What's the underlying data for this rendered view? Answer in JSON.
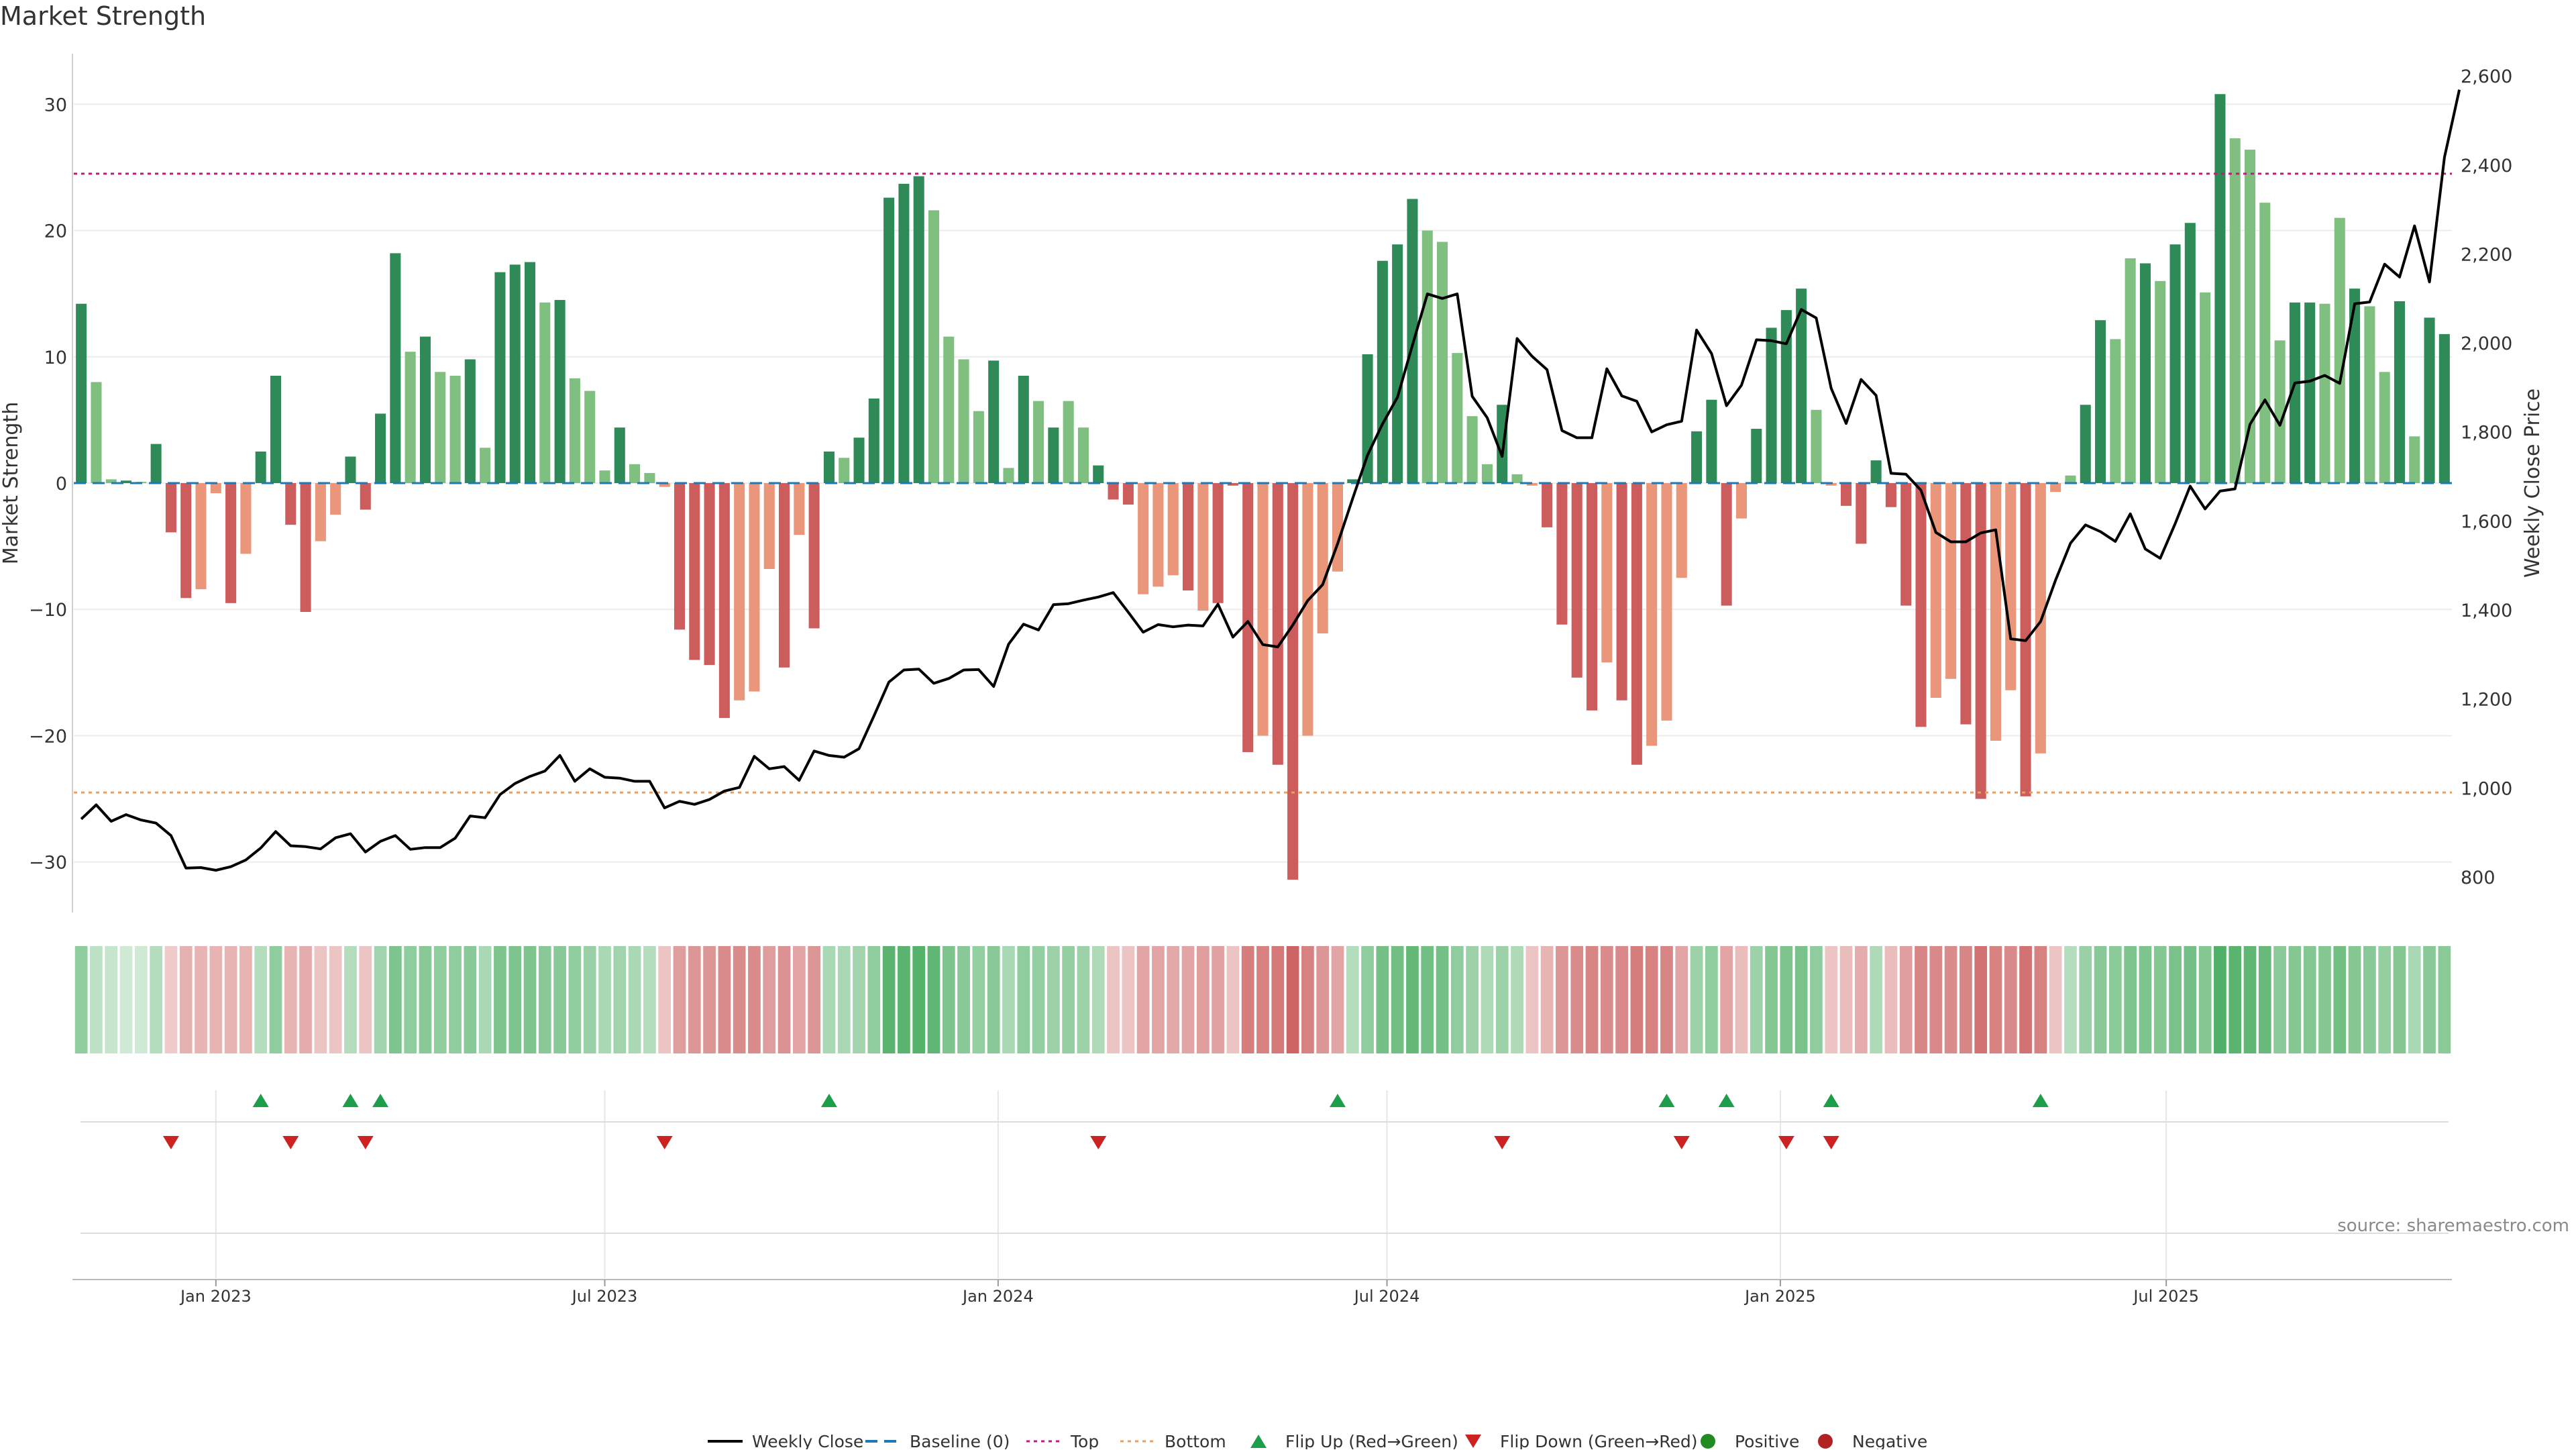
{
  "title": "Market Strength",
  "source": "source: sharemaestro.com",
  "colors": {
    "strong_green": "#2e8b57",
    "light_green": "#7fbf7f",
    "strong_red": "#cd5c5c",
    "light_red": "#e9967a",
    "price_line": "#000000",
    "baseline": "#1f77b4",
    "top": "#c71585",
    "bottom": "#e8a060",
    "flip_up": "#1e9e4a",
    "flip_down": "#cc2222",
    "positive": "#228b22",
    "negative": "#b22222"
  },
  "chart_data": {
    "type": "bar+line",
    "title": "Market Strength",
    "ylabel_left": "Market Strength",
    "ylabel_right": "Weekly Close Price",
    "ylim_left": [
      -34,
      34
    ],
    "ylim_right": [
      720,
      2650
    ],
    "yticks_left": [
      30,
      20,
      10,
      0,
      -10,
      -20,
      -30
    ],
    "ytick_labels_left": [
      "30",
      "20",
      "10",
      "0",
      "−10",
      "−20",
      "−30"
    ],
    "yticks_right": [
      2600,
      2400,
      2200,
      2000,
      1800,
      1600,
      1400,
      1200,
      1000,
      800
    ],
    "ytick_labels_right": [
      "2,600",
      "2,400",
      "2,200",
      "2,000",
      "1,800",
      "1,600",
      "1,400",
      "1,200",
      "1,000",
      "800"
    ],
    "top_line": 24.5,
    "bottom_line": -24.5,
    "baseline": 0,
    "x_start_week": -9,
    "xticks": [
      {
        "week": 0,
        "label": "Jan 2023"
      },
      {
        "week": 26,
        "label": "Jul 2023"
      },
      {
        "week": 52.3,
        "label": "Jan 2024"
      },
      {
        "week": 78.3,
        "label": "Jul 2024"
      },
      {
        "week": 104.6,
        "label": "Jan 2025"
      },
      {
        "week": 130.4,
        "label": "Jul 2025"
      }
    ],
    "strength": [
      14.2,
      8.0,
      0.3,
      0.2,
      0.1,
      3.1,
      -3.9,
      -9.1,
      -8.4,
      -0.8,
      -9.5,
      -5.6,
      2.5,
      8.5,
      -3.3,
      -10.2,
      -4.6,
      -2.5,
      2.1,
      -2.1,
      5.5,
      18.2,
      10.4,
      11.6,
      8.8,
      8.5,
      9.8,
      2.8,
      16.7,
      17.3,
      17.5,
      14.3,
      14.5,
      8.3,
      7.3,
      1.0,
      4.4,
      1.5,
      0.8,
      -0.3,
      -11.6,
      -14.0,
      -14.4,
      -18.6,
      -17.2,
      -16.5,
      -6.8,
      -14.6,
      -4.1,
      -11.5,
      2.5,
      2.0,
      3.6,
      6.7,
      22.6,
      23.7,
      24.3,
      21.6,
      11.6,
      9.8,
      5.7,
      9.7,
      1.2,
      8.5,
      6.5,
      4.4,
      6.5,
      4.4,
      1.4,
      -1.3,
      -1.7,
      -8.8,
      -8.2,
      -7.3,
      -8.5,
      -10.1,
      -9.5,
      -0.2,
      -21.3,
      -20.0,
      -22.3,
      -31.4,
      -20.0,
      -11.9,
      -7.0,
      0.3,
      10.2,
      17.6,
      18.9,
      22.5,
      20.0,
      19.1,
      10.3,
      5.3,
      1.5,
      6.2,
      0.7,
      -0.2,
      -3.5,
      -11.2,
      -15.4,
      -18.0,
      -14.2,
      -17.2,
      -22.3,
      -20.8,
      -18.8,
      -7.5,
      4.1,
      6.6,
      -9.7,
      -2.8,
      4.3,
      12.3,
      13.7,
      15.4,
      5.8,
      -0.2,
      -1.8,
      -4.8,
      1.8,
      -1.9,
      -9.7,
      -19.3,
      -17.0,
      -15.5,
      -19.1,
      -25.0,
      -20.4,
      -16.4,
      -24.8,
      -21.4,
      -0.7,
      0.6,
      6.2,
      12.9,
      11.4,
      17.8,
      17.4,
      16.0,
      18.9,
      20.6,
      15.1,
      30.8,
      27.3,
      26.4,
      22.2,
      11.3,
      14.3,
      14.3,
      14.2,
      21.0,
      15.4,
      14.0,
      8.8,
      14.4,
      3.7,
      13.1,
      11.8
    ],
    "strength_shade": [
      "strong",
      "light",
      "light",
      "strong",
      "light",
      "strong",
      "strong",
      "strong",
      "light",
      "light",
      "strong",
      "light",
      "strong",
      "strong",
      "strong",
      "strong",
      "light",
      "light",
      "strong",
      "strong",
      "strong",
      "strong",
      "light",
      "strong",
      "light",
      "light",
      "strong",
      "light",
      "strong",
      "strong",
      "strong",
      "light",
      "strong",
      "light",
      "light",
      "light",
      "strong",
      "light",
      "light",
      "light",
      "strong",
      "strong",
      "strong",
      "strong",
      "light",
      "light",
      "light",
      "strong",
      "light",
      "strong",
      "strong",
      "light",
      "strong",
      "strong",
      "strong",
      "strong",
      "strong",
      "light",
      "light",
      "light",
      "light",
      "strong",
      "light",
      "strong",
      "light",
      "strong",
      "light",
      "light",
      "strong",
      "strong",
      "strong",
      "light",
      "light",
      "light",
      "strong",
      "light",
      "strong",
      "strong",
      "strong",
      "light",
      "strong",
      "strong",
      "light",
      "light",
      "light",
      "strong",
      "strong",
      "strong",
      "strong",
      "strong",
      "light",
      "light",
      "light",
      "light",
      "light",
      "strong",
      "light",
      "light",
      "strong",
      "strong",
      "strong",
      "strong",
      "light",
      "strong",
      "strong",
      "light",
      "light",
      "light",
      "strong",
      "strong",
      "strong",
      "light",
      "strong",
      "strong",
      "strong",
      "strong",
      "light",
      "light",
      "strong",
      "strong",
      "strong",
      "strong",
      "strong",
      "strong",
      "light",
      "light",
      "strong",
      "strong",
      "light",
      "light",
      "strong",
      "light",
      "light",
      "light",
      "strong",
      "strong",
      "light",
      "light",
      "strong",
      "light",
      "strong",
      "strong",
      "light",
      "strong",
      "light",
      "light",
      "light",
      "light",
      "strong",
      "strong",
      "light",
      "light",
      "strong",
      "light",
      "light",
      "strong",
      "light",
      "strong",
      "strong"
    ],
    "weekly_close": [
      930,
      962,
      925,
      940,
      928,
      921,
      893,
      820,
      821,
      815,
      823,
      838,
      865,
      902,
      870,
      868,
      863,
      888,
      897,
      856,
      880,
      893,
      862,
      866,
      866,
      887,
      937,
      933,
      985,
      1010,
      1026,
      1038,
      1073,
      1015,
      1043,
      1024,
      1022,
      1015,
      1015,
      955,
      970,
      963,
      974,
      993,
      1001,
      1071,
      1043,
      1048,
      1017,
      1083,
      1073,
      1069,
      1088,
      1162,
      1238,
      1265,
      1267,
      1235,
      1246,
      1265,
      1266,
      1228,
      1323,
      1368,
      1355,
      1412,
      1414,
      1422,
      1429,
      1439,
      1395,
      1350,
      1367,
      1362,
      1366,
      1364,
      1413,
      1339,
      1374,
      1322,
      1317,
      1366,
      1421,
      1457,
      1549,
      1650,
      1748,
      1818,
      1878,
      1995,
      2110,
      2100,
      2110,
      1880,
      1832,
      1745,
      2010,
      1970,
      1940,
      1803,
      1787,
      1787,
      1942,
      1881,
      1869,
      1800,
      1816,
      1824,
      2029,
      1976,
      1859,
      1905,
      2007,
      2005,
      1998,
      2075,
      2056,
      1898,
      1819,
      1918,
      1882,
      1707,
      1705,
      1669,
      1574,
      1553,
      1553,
      1573,
      1580,
      1335,
      1331,
      1374,
      1467,
      1550,
      1591,
      1576,
      1554,
      1616,
      1537,
      1516,
      1594,
      1678,
      1627,
      1667,
      1672,
      1817,
      1872,
      1815,
      1910,
      1914,
      1927,
      1909,
      2088,
      2092,
      2177,
      2148,
      2263,
      2137,
      2417,
      2569
    ],
    "regime_strip": [
      0.45,
      0.2,
      0.15,
      0.1,
      0.1,
      0.25,
      -0.15,
      -0.32,
      -0.3,
      -0.3,
      -0.3,
      -0.3,
      0.25,
      0.45,
      -0.3,
      -0.35,
      -0.2,
      -0.2,
      0.25,
      -0.2,
      0.35,
      0.55,
      0.45,
      0.5,
      0.45,
      0.45,
      0.5,
      0.3,
      0.55,
      0.55,
      0.55,
      0.5,
      0.5,
      0.45,
      0.4,
      0.3,
      0.35,
      0.3,
      0.25,
      -0.2,
      -0.45,
      -0.5,
      -0.5,
      -0.55,
      -0.55,
      -0.55,
      -0.45,
      -0.52,
      -0.4,
      -0.5,
      0.3,
      0.3,
      0.35,
      0.45,
      0.75,
      0.75,
      0.78,
      0.72,
      0.55,
      0.5,
      0.42,
      0.5,
      0.3,
      0.45,
      0.42,
      0.38,
      0.42,
      0.38,
      0.28,
      -0.2,
      -0.2,
      -0.4,
      -0.4,
      -0.38,
      -0.4,
      -0.45,
      -0.42,
      -0.2,
      -0.65,
      -0.62,
      -0.68,
      -0.8,
      -0.62,
      -0.5,
      -0.4,
      0.25,
      0.45,
      0.6,
      0.62,
      0.7,
      0.62,
      0.6,
      0.45,
      0.38,
      0.28,
      0.38,
      0.28,
      -0.2,
      -0.3,
      -0.5,
      -0.55,
      -0.6,
      -0.55,
      -0.58,
      -0.65,
      -0.62,
      -0.6,
      -0.4,
      0.38,
      0.45,
      -0.4,
      -0.25,
      0.38,
      0.52,
      0.55,
      0.58,
      0.45,
      -0.2,
      -0.25,
      -0.35,
      0.28,
      -0.25,
      -0.45,
      -0.6,
      -0.58,
      -0.55,
      -0.6,
      -0.72,
      -0.62,
      -0.58,
      -0.72,
      -0.62,
      -0.2,
      0.25,
      0.4,
      0.5,
      0.48,
      0.55,
      0.55,
      0.52,
      0.58,
      0.6,
      0.52,
      0.8,
      0.75,
      0.72,
      0.68,
      0.48,
      0.52,
      0.52,
      0.52,
      0.62,
      0.52,
      0.5,
      0.42,
      0.52,
      0.3,
      0.5,
      0.48
    ],
    "flip_up_weeks": [
      3,
      9,
      11,
      41,
      75,
      97,
      101,
      108,
      122
    ],
    "flip_down_weeks": [
      -3,
      5,
      10,
      30,
      59,
      86,
      98,
      105,
      108
    ],
    "legend": [
      {
        "key": "close",
        "label": "Weekly Close"
      },
      {
        "key": "baseline",
        "label": "Baseline (0)"
      },
      {
        "key": "top",
        "label": "Top"
      },
      {
        "key": "bottom",
        "label": "Bottom"
      },
      {
        "key": "flip_up",
        "label": "Flip Up (Red→Green)"
      },
      {
        "key": "flip_down",
        "label": "Flip Down (Green→Red)"
      },
      {
        "key": "positive",
        "label": "Positive"
      },
      {
        "key": "negative",
        "label": "Negative"
      }
    ]
  }
}
